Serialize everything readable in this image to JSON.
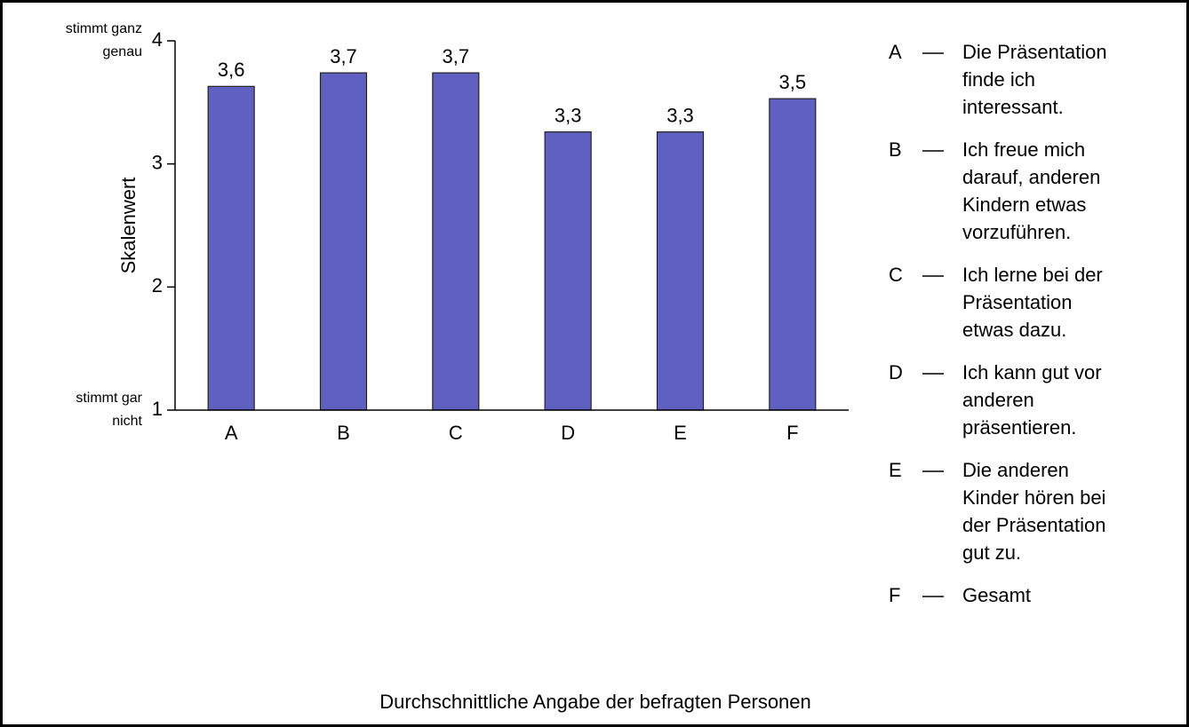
{
  "chart_data": {
    "type": "bar",
    "ylabel": "Skalenwert",
    "xlabel": "Durchschnittliche Angabe der befragten Personen",
    "categories": [
      "A",
      "B",
      "C",
      "D",
      "E",
      "F"
    ],
    "values": [
      3.63,
      3.74,
      3.74,
      3.26,
      3.26,
      3.53
    ],
    "value_labels": [
      "3,6",
      "3,7",
      "3,7",
      "3,3",
      "3,3",
      "3,5"
    ],
    "color": "#6060c0",
    "ylim": [
      1,
      4
    ],
    "yticks": [
      1,
      2,
      3,
      4
    ],
    "annotations": [
      {
        "at": 4,
        "lines": [
          "stimmt ganz",
          "genau"
        ]
      },
      {
        "at": 1,
        "lines": [
          "stimmt gar",
          "nicht"
        ]
      }
    ],
    "legend": [
      {
        "key": "A",
        "lines": [
          "Die Präsentation",
          "finde ich",
          "interessant."
        ]
      },
      {
        "key": "B",
        "lines": [
          "Ich freue mich",
          "darauf, anderen",
          "Kindern etwas",
          "vorzuführen."
        ]
      },
      {
        "key": "C",
        "lines": [
          "Ich lerne bei der",
          "Präsentation",
          "etwas dazu."
        ]
      },
      {
        "key": "D",
        "lines": [
          "Ich kann gut vor",
          "anderen",
          "präsentieren."
        ]
      },
      {
        "key": "E",
        "lines": [
          "Die anderen",
          "Kinder hören bei",
          "der Präsentation",
          "gut zu."
        ]
      },
      {
        "key": "F",
        "lines": [
          "Gesamt"
        ]
      }
    ]
  }
}
